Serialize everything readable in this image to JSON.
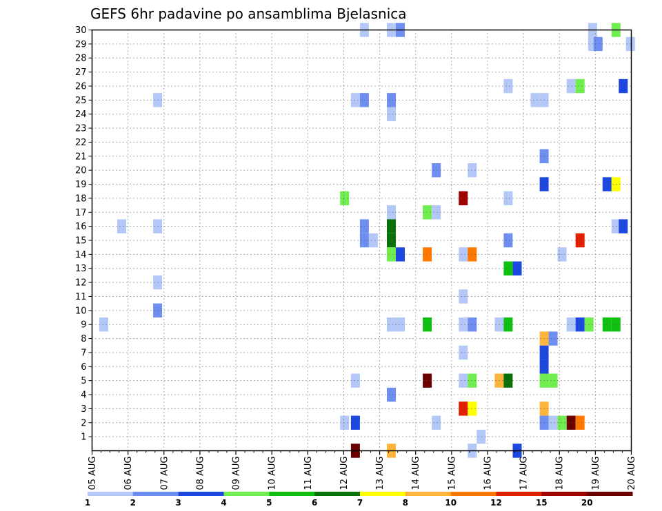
{
  "chart_data": {
    "type": "heatmap",
    "title": "GEFS 6hr padavine po ansamblima Bjelasnica",
    "xlabel": "",
    "ylabel": "",
    "x_tick_labels": [
      "05 AUG",
      "06 AUG",
      "07 AUG",
      "08 AUG",
      "09 AUG",
      "10 AUG",
      "11 AUG",
      "12 AUG",
      "13 AUG",
      "14 AUG",
      "15 AUG",
      "16 AUG",
      "17 AUG",
      "18 AUG",
      "19 AUG",
      "20 AUG"
    ],
    "y_tick_labels": [
      "1",
      "2",
      "3",
      "4",
      "5",
      "6",
      "7",
      "8",
      "9",
      "10",
      "11",
      "12",
      "13",
      "14",
      "15",
      "16",
      "17",
      "18",
      "19",
      "20",
      "21",
      "22",
      "23",
      "24",
      "25",
      "26",
      "27",
      "28",
      "29",
      "30"
    ],
    "x_range_days": [
      0,
      15
    ],
    "y_range_members": [
      0,
      30
    ],
    "grid": true,
    "legend_position": "bottom",
    "legend": {
      "colors": [
        "#b4c8f8",
        "#6e8ef0",
        "#1c48e0",
        "#70ee50",
        "#10c010",
        "#0a7008",
        "#ffff00",
        "#ffb43c",
        "#ff7800",
        "#e02000",
        "#a00000",
        "#6a0000"
      ],
      "labels": [
        "1",
        "2",
        "3",
        "4",
        "5",
        "6",
        "7",
        "8",
        "10",
        "12",
        "15",
        "20"
      ]
    },
    "cells": [
      {
        "t": 0.2,
        "m": 9,
        "v": 1
      },
      {
        "t": 0.7,
        "m": 16,
        "v": 1
      },
      {
        "t": 1.7,
        "m": 25,
        "v": 1
      },
      {
        "t": 1.7,
        "m": 16,
        "v": 1
      },
      {
        "t": 1.7,
        "m": 12,
        "v": 1
      },
      {
        "t": 1.7,
        "m": 10,
        "v": 2
      },
      {
        "t": 6.9,
        "m": 18,
        "v": 4
      },
      {
        "t": 6.9,
        "m": 2,
        "v": 1
      },
      {
        "t": 7.2,
        "m": 25,
        "v": 1
      },
      {
        "t": 7.2,
        "m": 5,
        "v": 1
      },
      {
        "t": 7.2,
        "m": 2,
        "v": 3
      },
      {
        "t": 7.2,
        "m": 0,
        "v": 20
      },
      {
        "t": 7.45,
        "m": 30,
        "v": 1
      },
      {
        "t": 7.45,
        "m": 25,
        "v": 2
      },
      {
        "t": 7.45,
        "m": 16,
        "v": 2
      },
      {
        "t": 7.45,
        "m": 15,
        "v": 2
      },
      {
        "t": 7.7,
        "m": 15,
        "v": 1
      },
      {
        "t": 8.2,
        "m": 30,
        "v": 1
      },
      {
        "t": 8.2,
        "m": 25,
        "v": 2
      },
      {
        "t": 8.2,
        "m": 24,
        "v": 1
      },
      {
        "t": 8.2,
        "m": 17,
        "v": 1
      },
      {
        "t": 8.2,
        "m": 16,
        "v": 6
      },
      {
        "t": 8.2,
        "m": 15,
        "v": 6
      },
      {
        "t": 8.2,
        "m": 14,
        "v": 4
      },
      {
        "t": 8.2,
        "m": 9,
        "v": 1
      },
      {
        "t": 8.2,
        "m": 4,
        "v": 2
      },
      {
        "t": 8.2,
        "m": 0,
        "v": 8
      },
      {
        "t": 8.45,
        "m": 30,
        "v": 2
      },
      {
        "t": 8.45,
        "m": 14,
        "v": 3
      },
      {
        "t": 8.45,
        "m": 9,
        "v": 1
      },
      {
        "t": 9.2,
        "m": 17,
        "v": 4
      },
      {
        "t": 9.2,
        "m": 14,
        "v": 10
      },
      {
        "t": 9.2,
        "m": 9,
        "v": 5
      },
      {
        "t": 9.2,
        "m": 5,
        "v": 20
      },
      {
        "t": 9.45,
        "m": 20,
        "v": 2
      },
      {
        "t": 9.45,
        "m": 17,
        "v": 1
      },
      {
        "t": 9.45,
        "m": 2,
        "v": 1
      },
      {
        "t": 10.2,
        "m": 18,
        "v": 15
      },
      {
        "t": 10.2,
        "m": 14,
        "v": 1
      },
      {
        "t": 10.2,
        "m": 11,
        "v": 1
      },
      {
        "t": 10.2,
        "m": 9,
        "v": 1
      },
      {
        "t": 10.2,
        "m": 7,
        "v": 1
      },
      {
        "t": 10.2,
        "m": 5,
        "v": 1
      },
      {
        "t": 10.2,
        "m": 3,
        "v": 12
      },
      {
        "t": 10.45,
        "m": 20,
        "v": 1
      },
      {
        "t": 10.45,
        "m": 14,
        "v": 10
      },
      {
        "t": 10.45,
        "m": 9,
        "v": 2
      },
      {
        "t": 10.45,
        "m": 5,
        "v": 4
      },
      {
        "t": 10.45,
        "m": 3,
        "v": 7
      },
      {
        "t": 10.45,
        "m": 0,
        "v": 1
      },
      {
        "t": 10.7,
        "m": 1,
        "v": 1
      },
      {
        "t": 11.2,
        "m": 9,
        "v": 1
      },
      {
        "t": 11.2,
        "m": 5,
        "v": 8
      },
      {
        "t": 11.45,
        "m": 26,
        "v": 1
      },
      {
        "t": 11.45,
        "m": 18,
        "v": 1
      },
      {
        "t": 11.45,
        "m": 15,
        "v": 2
      },
      {
        "t": 11.45,
        "m": 13,
        "v": 5
      },
      {
        "t": 11.45,
        "m": 9,
        "v": 5
      },
      {
        "t": 11.45,
        "m": 5,
        "v": 6
      },
      {
        "t": 11.7,
        "m": 13,
        "v": 3
      },
      {
        "t": 11.7,
        "m": 0,
        "v": 3
      },
      {
        "t": 12.2,
        "m": 25,
        "v": 1
      },
      {
        "t": 12.45,
        "m": 25,
        "v": 1
      },
      {
        "t": 12.45,
        "m": 21,
        "v": 2
      },
      {
        "t": 12.45,
        "m": 19,
        "v": 3
      },
      {
        "t": 12.45,
        "m": 8,
        "v": 8
      },
      {
        "t": 12.45,
        "m": 7,
        "v": 3
      },
      {
        "t": 12.45,
        "m": 6,
        "v": 3
      },
      {
        "t": 12.45,
        "m": 5,
        "v": 4
      },
      {
        "t": 12.45,
        "m": 3,
        "v": 8
      },
      {
        "t": 12.45,
        "m": 2,
        "v": 2
      },
      {
        "t": 12.7,
        "m": 8,
        "v": 2
      },
      {
        "t": 12.7,
        "m": 5,
        "v": 4
      },
      {
        "t": 12.7,
        "m": 2,
        "v": 1
      },
      {
        "t": 12.95,
        "m": 14,
        "v": 1
      },
      {
        "t": 12.95,
        "m": 2,
        "v": 4
      },
      {
        "t": 13.2,
        "m": 26,
        "v": 1
      },
      {
        "t": 13.2,
        "m": 9,
        "v": 1
      },
      {
        "t": 13.2,
        "m": 2,
        "v": 20
      },
      {
        "t": 13.45,
        "m": 26,
        "v": 4
      },
      {
        "t": 13.45,
        "m": 15,
        "v": 12
      },
      {
        "t": 13.45,
        "m": 9,
        "v": 3
      },
      {
        "t": 13.45,
        "m": 2,
        "v": 10
      },
      {
        "t": 13.7,
        "m": 9,
        "v": 4
      },
      {
        "t": 13.8,
        "m": 30,
        "v": 1
      },
      {
        "t": 13.8,
        "m": 29,
        "v": 1
      },
      {
        "t": 13.95,
        "m": 29,
        "v": 2
      },
      {
        "t": 14.2,
        "m": 19,
        "v": 3
      },
      {
        "t": 14.2,
        "m": 9,
        "v": 5
      },
      {
        "t": 14.45,
        "m": 30,
        "v": 4
      },
      {
        "t": 14.45,
        "m": 19,
        "v": 7
      },
      {
        "t": 14.45,
        "m": 16,
        "v": 1
      },
      {
        "t": 14.45,
        "m": 9,
        "v": 5
      },
      {
        "t": 14.65,
        "m": 26,
        "v": 3
      },
      {
        "t": 14.65,
        "m": 16,
        "v": 3
      },
      {
        "t": 14.85,
        "m": 29,
        "v": 1
      }
    ]
  }
}
